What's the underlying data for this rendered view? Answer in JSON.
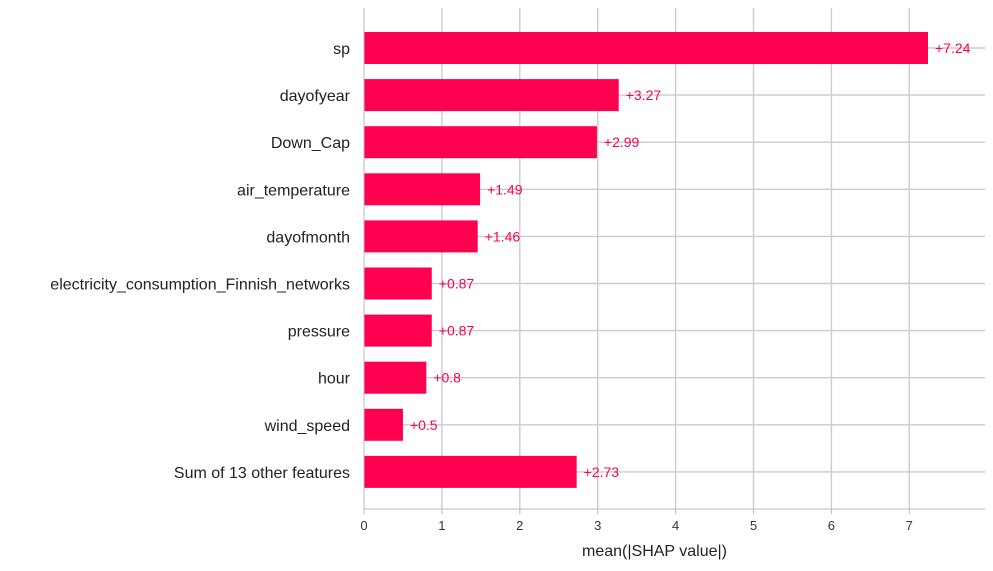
{
  "chart_data": {
    "type": "bar",
    "orientation": "horizontal",
    "categories": [
      "sp",
      "dayofyear",
      "Down_Cap",
      "air_temperature",
      "dayofmonth",
      "electricity_consumption_Finnish_networks",
      "pressure",
      "hour",
      "wind_speed",
      "Sum of 13 other features"
    ],
    "values": [
      7.24,
      3.27,
      2.99,
      1.49,
      1.46,
      0.87,
      0.87,
      0.8,
      0.5,
      2.73
    ],
    "value_labels": [
      "+7.24",
      "+3.27",
      "+2.99",
      "+1.49",
      "+1.46",
      "+0.87",
      "+0.87",
      "+0.8",
      "+0.5",
      "+2.73"
    ],
    "xlabel": "mean(|SHAP value|)",
    "xticks": [
      "0",
      "1",
      "2",
      "3",
      "4",
      "5",
      "6",
      "7"
    ],
    "xlim": [
      0,
      7.96
    ],
    "grid": true,
    "bar_color": "#ff0051",
    "label_color": "#ff0051",
    "grid_color": "#cccccc"
  }
}
